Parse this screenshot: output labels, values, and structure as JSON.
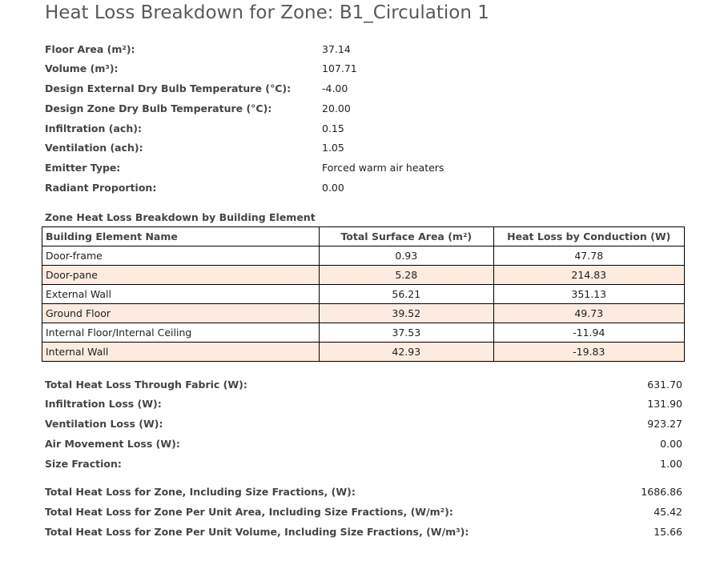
{
  "title": "Heat Loss Breakdown for Zone: B1_Circulation 1",
  "properties": [
    {
      "label": "Floor Area (m²):",
      "value": "37.14"
    },
    {
      "label": "Volume (m³):",
      "value": "107.71"
    },
    {
      "label": "Design External Dry Bulb Temperature (°C):",
      "value": "-4.00"
    },
    {
      "label": "Design Zone Dry Bulb Temperature (°C):",
      "value": "20.00"
    },
    {
      "label": "Infiltration (ach):",
      "value": "0.15"
    },
    {
      "label": "Ventilation (ach):",
      "value": "1.05"
    },
    {
      "label": "Emitter Type:",
      "value": "Forced warm air heaters"
    },
    {
      "label": "Radiant Proportion:",
      "value": "0.00"
    }
  ],
  "element_table": {
    "heading": "Zone Heat Loss Breakdown by Building Element",
    "columns": [
      "Building Element Name",
      "Total Surface Area (m²)",
      "Heat Loss by Conduction (W)"
    ],
    "rows": [
      [
        "Door-frame",
        "0.93",
        "47.78"
      ],
      [
        "Door-pane",
        "5.28",
        "214.83"
      ],
      [
        "External Wall",
        "56.21",
        "351.13"
      ],
      [
        "Ground Floor",
        "39.52",
        "49.73"
      ],
      [
        "Internal Floor/Internal Ceiling",
        "37.53",
        "-11.94"
      ],
      [
        "Internal Wall",
        "42.93",
        "-19.83"
      ]
    ],
    "alt_row_color": "#fdebe0"
  },
  "summary": [
    {
      "label": "Total Heat Loss Through Fabric (W):",
      "value": "631.70"
    },
    {
      "label": "Infiltration Loss (W):",
      "value": "131.90"
    },
    {
      "label": "Ventilation Loss (W):",
      "value": "923.27"
    },
    {
      "label": "Air Movement Loss (W):",
      "value": "0.00"
    },
    {
      "label": "Size Fraction:",
      "value": "1.00"
    }
  ],
  "totals": [
    {
      "label": "Total Heat Loss for Zone, Including Size Fractions, (W):",
      "value": "1686.86"
    },
    {
      "label": "Total Heat Loss for Zone Per Unit Area, Including Size Fractions, (W/m²):",
      "value": "45.42"
    },
    {
      "label": "Total Heat Loss for Zone Per Unit Volume, Including Size Fractions, (W/m³):",
      "value": "15.66"
    }
  ]
}
